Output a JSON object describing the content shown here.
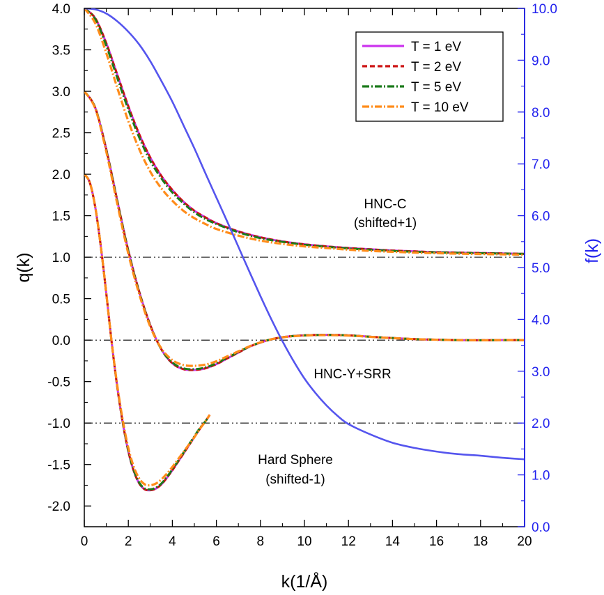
{
  "chart_data": {
    "type": "line",
    "xlabel": "k(1/Å)",
    "ylabel": "q(k)",
    "y2label": "f(k)",
    "xlim": [
      0,
      20
    ],
    "ylim": [
      -2.25,
      4.0
    ],
    "y2lim": [
      0.0,
      10.0
    ],
    "x_ticks": [
      "0",
      "2",
      "4",
      "6",
      "8",
      "10",
      "12",
      "14",
      "16",
      "18",
      "20"
    ],
    "y_ticks": [
      "-2.0",
      "-1.5",
      "-1.0",
      "-0.5",
      "0.0",
      "0.5",
      "1.0",
      "1.5",
      "2.0",
      "2.5",
      "3.0",
      "3.5",
      "4.0"
    ],
    "y2_ticks": [
      "0.0",
      "1.0",
      "2.0",
      "3.0",
      "4.0",
      "5.0",
      "6.0",
      "7.0",
      "8.0",
      "9.0",
      "10.0"
    ],
    "legend": {
      "position": "top-right",
      "entries": [
        {
          "label": "T  = 1 eV",
          "color": "#cc33ee",
          "dash": "solid"
        },
        {
          "label": "T  = 2 eV",
          "color": "#cc1111",
          "dash": "dash"
        },
        {
          "label": "T  = 5 eV",
          "color": "#1a7a1a",
          "dash": "dashdot"
        },
        {
          "label": "T  = 10 eV",
          "color": "#ff8c1a",
          "dash": "dashdot"
        }
      ]
    },
    "annotations": {
      "hnc_c": [
        "HNC-C",
        "(shifted+1)"
      ],
      "hnc_y": [
        "HNC-Y+SRR"
      ],
      "hard_sphere": [
        "Hard Sphere",
        "(shifted-1)"
      ]
    },
    "reference_lines": [
      1.0,
      0.0,
      -1.0
    ],
    "form_factor": {
      "axis": "right",
      "color": "#5555ee",
      "x": [
        0,
        0.5,
        1,
        1.5,
        2,
        2.5,
        3,
        3.5,
        4,
        4.5,
        5,
        5.5,
        6,
        6.5,
        7,
        7.5,
        8,
        8.5,
        9,
        9.5,
        10,
        10.5,
        11,
        11.5,
        12,
        13,
        14,
        15,
        16,
        17,
        18,
        19,
        20
      ],
      "y": [
        10.0,
        9.98,
        9.9,
        9.75,
        9.55,
        9.3,
        8.98,
        8.6,
        8.2,
        7.75,
        7.3,
        6.82,
        6.35,
        5.88,
        5.4,
        4.92,
        4.45,
        4.0,
        3.58,
        3.2,
        2.86,
        2.58,
        2.34,
        2.14,
        1.98,
        1.78,
        1.62,
        1.52,
        1.45,
        1.4,
        1.37,
        1.33,
        1.3
      ]
    },
    "groups": [
      {
        "name": "HNC-C",
        "variants": [
          {
            "color": "#cc33ee",
            "dash": "solid",
            "x": [
              0,
              0.5,
              1,
              1.5,
              2,
              2.5,
              3,
              3.5,
              4,
              4.5,
              5,
              5.5,
              6,
              7,
              8,
              9,
              10,
              11,
              12,
              13,
              14,
              15,
              16,
              17,
              18,
              19,
              20
            ],
            "y": [
              4.0,
              3.88,
              3.58,
              3.2,
              2.82,
              2.48,
              2.2,
              1.98,
              1.81,
              1.67,
              1.56,
              1.48,
              1.41,
              1.31,
              1.24,
              1.19,
              1.155,
              1.13,
              1.11,
              1.095,
              1.08,
              1.07,
              1.06,
              1.055,
              1.05,
              1.045,
              1.04
            ]
          },
          {
            "color": "#cc1111",
            "dash": "dash",
            "x": [
              0,
              0.5,
              1,
              1.5,
              2,
              2.5,
              3,
              3.5,
              4,
              4.5,
              5,
              5.5,
              6,
              7,
              8,
              9,
              10,
              11,
              12,
              13,
              14,
              15,
              16,
              17,
              18,
              19,
              20
            ],
            "y": [
              4.0,
              3.88,
              3.58,
              3.2,
              2.82,
              2.48,
              2.2,
              1.98,
              1.81,
              1.67,
              1.56,
              1.48,
              1.41,
              1.31,
              1.24,
              1.19,
              1.155,
              1.13,
              1.11,
              1.095,
              1.08,
              1.07,
              1.06,
              1.055,
              1.05,
              1.045,
              1.04
            ]
          },
          {
            "color": "#1a7a1a",
            "dash": "dashdot",
            "x": [
              0,
              0.5,
              1,
              1.5,
              2,
              2.5,
              3,
              3.5,
              4,
              4.5,
              5,
              5.5,
              6,
              7,
              8,
              9,
              10,
              11,
              12,
              13,
              14,
              15,
              16,
              17,
              18,
              19,
              20
            ],
            "y": [
              4.0,
              3.87,
              3.55,
              3.16,
              2.78,
              2.44,
              2.16,
              1.95,
              1.78,
              1.65,
              1.54,
              1.46,
              1.4,
              1.3,
              1.23,
              1.185,
              1.15,
              1.125,
              1.105,
              1.09,
              1.075,
              1.065,
              1.058,
              1.052,
              1.047,
              1.043,
              1.04
            ]
          },
          {
            "color": "#ff8c1a",
            "dash": "dashdot",
            "x": [
              0,
              0.5,
              1,
              1.5,
              2,
              2.5,
              3,
              3.5,
              4,
              4.5,
              5,
              5.5,
              6,
              7,
              8,
              9,
              10,
              11,
              12,
              13,
              14,
              15,
              16,
              17,
              18,
              19,
              20
            ],
            "y": [
              4.0,
              3.82,
              3.46,
              3.04,
              2.64,
              2.3,
              2.03,
              1.83,
              1.68,
              1.56,
              1.47,
              1.4,
              1.34,
              1.26,
              1.2,
              1.16,
              1.13,
              1.11,
              1.09,
              1.075,
              1.065,
              1.055,
              1.048,
              1.042,
              1.038,
              1.034,
              1.03
            ]
          }
        ]
      },
      {
        "name": "HNC-Y+SRR",
        "variants": [
          {
            "color": "#cc33ee",
            "dash": "solid",
            "x": [
              0,
              0.5,
              1,
              1.5,
              2,
              2.5,
              3,
              3.5,
              4,
              4.5,
              5,
              5.5,
              6,
              6.5,
              7,
              7.5,
              8,
              8.5,
              9,
              9.5,
              10,
              10.5,
              11,
              11.5,
              12,
              12.5,
              13,
              14,
              15,
              16,
              17,
              18,
              19,
              20
            ],
            "y": [
              3.0,
              2.8,
              2.3,
              1.68,
              1.08,
              0.58,
              0.18,
              -0.11,
              -0.28,
              -0.35,
              -0.36,
              -0.34,
              -0.29,
              -0.22,
              -0.15,
              -0.08,
              -0.03,
              0.01,
              0.035,
              0.05,
              0.058,
              0.062,
              0.063,
              0.062,
              0.058,
              0.05,
              0.04,
              0.025,
              0.012,
              0.005,
              0.0,
              -0.002,
              0.0,
              0.0
            ]
          },
          {
            "color": "#cc1111",
            "dash": "dash",
            "x": [
              0,
              0.5,
              1,
              1.5,
              2,
              2.5,
              3,
              3.5,
              4,
              4.5,
              5,
              5.5,
              6,
              6.5,
              7,
              7.5,
              8,
              8.5,
              9,
              9.5,
              10,
              10.5,
              11,
              11.5,
              12,
              12.5,
              13,
              14,
              15,
              16,
              17,
              18,
              19,
              20
            ],
            "y": [
              3.0,
              2.8,
              2.3,
              1.68,
              1.08,
              0.58,
              0.18,
              -0.11,
              -0.28,
              -0.35,
              -0.36,
              -0.34,
              -0.29,
              -0.22,
              -0.15,
              -0.08,
              -0.03,
              0.01,
              0.035,
              0.05,
              0.058,
              0.062,
              0.063,
              0.062,
              0.058,
              0.05,
              0.04,
              0.025,
              0.012,
              0.005,
              0.0,
              -0.002,
              0.0,
              0.0
            ]
          },
          {
            "color": "#1a7a1a",
            "dash": "dashdot",
            "x": [
              0,
              0.5,
              1,
              1.5,
              2,
              2.5,
              3,
              3.5,
              4,
              4.5,
              5,
              5.5,
              6,
              6.5,
              7,
              7.5,
              8,
              8.5,
              9,
              9.5,
              10,
              10.5,
              11,
              11.5,
              12,
              12.5,
              13,
              14,
              15,
              16,
              17,
              18,
              19,
              20
            ],
            "y": [
              3.0,
              2.8,
              2.29,
              1.67,
              1.07,
              0.57,
              0.17,
              -0.11,
              -0.27,
              -0.34,
              -0.35,
              -0.33,
              -0.28,
              -0.21,
              -0.145,
              -0.078,
              -0.028,
              0.01,
              0.034,
              0.049,
              0.057,
              0.061,
              0.062,
              0.061,
              0.057,
              0.049,
              0.04,
              0.025,
              0.012,
              0.005,
              0.0,
              -0.002,
              0.0,
              0.0
            ]
          },
          {
            "color": "#ff8c1a",
            "dash": "dashdot",
            "x": [
              0,
              0.5,
              1,
              1.5,
              2,
              2.5,
              3,
              3.5,
              4,
              4.5,
              5,
              5.5,
              6,
              6.5,
              7,
              7.5,
              8,
              8.5,
              9,
              9.5,
              10,
              10.5,
              11,
              11.5,
              12,
              12.5,
              13,
              14,
              15,
              16,
              17,
              18,
              19,
              20
            ],
            "y": [
              3.0,
              2.79,
              2.27,
              1.64,
              1.04,
              0.55,
              0.16,
              -0.1,
              -0.24,
              -0.3,
              -0.31,
              -0.295,
              -0.255,
              -0.195,
              -0.135,
              -0.075,
              -0.027,
              0.01,
              0.033,
              0.047,
              0.055,
              0.059,
              0.06,
              0.059,
              0.055,
              0.048,
              0.039,
              0.024,
              0.012,
              0.005,
              0.0,
              -0.002,
              0.0,
              0.0
            ]
          }
        ]
      },
      {
        "name": "Hard Sphere",
        "variants": [
          {
            "color": "#cc33ee",
            "dash": "solid",
            "x": [
              0,
              0.25,
              0.5,
              0.75,
              1,
              1.25,
              1.5,
              1.75,
              2,
              2.25,
              2.5,
              2.75,
              3,
              3.25,
              3.5,
              3.75,
              4,
              4.25,
              4.5,
              4.75,
              5,
              5.25,
              5.5,
              5.7
            ],
            "y": [
              2.0,
              1.9,
              1.6,
              1.13,
              0.56,
              -0.04,
              -0.57,
              -1.0,
              -1.34,
              -1.58,
              -1.73,
              -1.8,
              -1.81,
              -1.79,
              -1.74,
              -1.66,
              -1.57,
              -1.47,
              -1.37,
              -1.27,
              -1.17,
              -1.07,
              -0.98,
              -0.9
            ]
          },
          {
            "color": "#cc1111",
            "dash": "dash",
            "x": [
              0,
              0.25,
              0.5,
              0.75,
              1,
              1.25,
              1.5,
              1.75,
              2,
              2.25,
              2.5,
              2.75,
              3,
              3.25,
              3.5,
              3.75,
              4,
              4.25,
              4.5,
              4.75,
              5,
              5.25,
              5.5,
              5.7
            ],
            "y": [
              2.0,
              1.9,
              1.6,
              1.13,
              0.56,
              -0.04,
              -0.57,
              -1.0,
              -1.34,
              -1.58,
              -1.73,
              -1.8,
              -1.81,
              -1.79,
              -1.74,
              -1.66,
              -1.57,
              -1.47,
              -1.37,
              -1.27,
              -1.17,
              -1.07,
              -0.98,
              -0.9
            ]
          },
          {
            "color": "#1a7a1a",
            "dash": "dashdot",
            "x": [
              0,
              0.25,
              0.5,
              0.75,
              1,
              1.25,
              1.5,
              1.75,
              2,
              2.25,
              2.5,
              2.75,
              3,
              3.25,
              3.5,
              3.75,
              4,
              4.25,
              4.5,
              4.75,
              5,
              5.25,
              5.5,
              5.7
            ],
            "y": [
              2.0,
              1.9,
              1.6,
              1.13,
              0.56,
              -0.04,
              -0.56,
              -0.99,
              -1.33,
              -1.57,
              -1.72,
              -1.79,
              -1.8,
              -1.78,
              -1.73,
              -1.65,
              -1.56,
              -1.46,
              -1.36,
              -1.26,
              -1.16,
              -1.06,
              -0.98,
              -0.9
            ]
          },
          {
            "color": "#ff8c1a",
            "dash": "dashdot",
            "x": [
              0,
              0.25,
              0.5,
              0.75,
              1,
              1.25,
              1.5,
              1.75,
              2,
              2.25,
              2.5,
              2.75,
              3,
              3.25,
              3.5,
              3.75,
              4,
              4.25,
              4.5,
              4.75,
              5,
              5.25,
              5.5,
              5.7
            ],
            "y": [
              2.0,
              1.9,
              1.6,
              1.13,
              0.56,
              -0.04,
              -0.55,
              -0.97,
              -1.3,
              -1.53,
              -1.67,
              -1.74,
              -1.75,
              -1.73,
              -1.68,
              -1.61,
              -1.53,
              -1.44,
              -1.35,
              -1.26,
              -1.17,
              -1.07,
              -0.98,
              -0.9
            ]
          }
        ]
      }
    ]
  }
}
